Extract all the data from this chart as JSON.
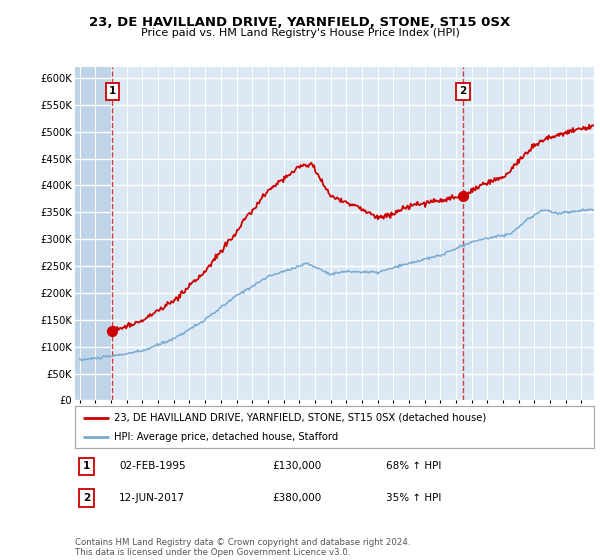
{
  "title": "23, DE HAVILLAND DRIVE, YARNFIELD, STONE, ST15 0SX",
  "subtitle": "Price paid vs. HM Land Registry's House Price Index (HPI)",
  "background_color": "#dce9f5",
  "plot_bg_color": "#dce9f5",
  "hatch_color": "#c0d4e8",
  "grid_color": "#ffffff",
  "red_line_color": "#cc0000",
  "blue_line_color": "#7aaad0",
  "vline1_date": 1995.09,
  "vline2_date": 2017.44,
  "point1_date": 1995.09,
  "point1_value": 130000,
  "point2_date": 2017.44,
  "point2_value": 380000,
  "ylim": [
    0,
    620000
  ],
  "xlim_start": 1992.7,
  "xlim_end": 2025.8,
  "yticks": [
    0,
    50000,
    100000,
    150000,
    200000,
    250000,
    300000,
    350000,
    400000,
    450000,
    500000,
    550000,
    600000
  ],
  "ytick_labels": [
    "£0",
    "£50K",
    "£100K",
    "£150K",
    "£200K",
    "£250K",
    "£300K",
    "£350K",
    "£400K",
    "£450K",
    "£500K",
    "£550K",
    "£600K"
  ],
  "footer_text": "Contains HM Land Registry data © Crown copyright and database right 2024.\nThis data is licensed under the Open Government Licence v3.0.",
  "legend_entry1": "23, DE HAVILLAND DRIVE, YARNFIELD, STONE, ST15 0SX (detached house)",
  "legend_entry2": "HPI: Average price, detached house, Stafford",
  "table_row1": [
    "1",
    "02-FEB-1995",
    "£130,000",
    "68% ↑ HPI"
  ],
  "table_row2": [
    "2",
    "12-JUN-2017",
    "£380,000",
    "35% ↑ HPI"
  ]
}
